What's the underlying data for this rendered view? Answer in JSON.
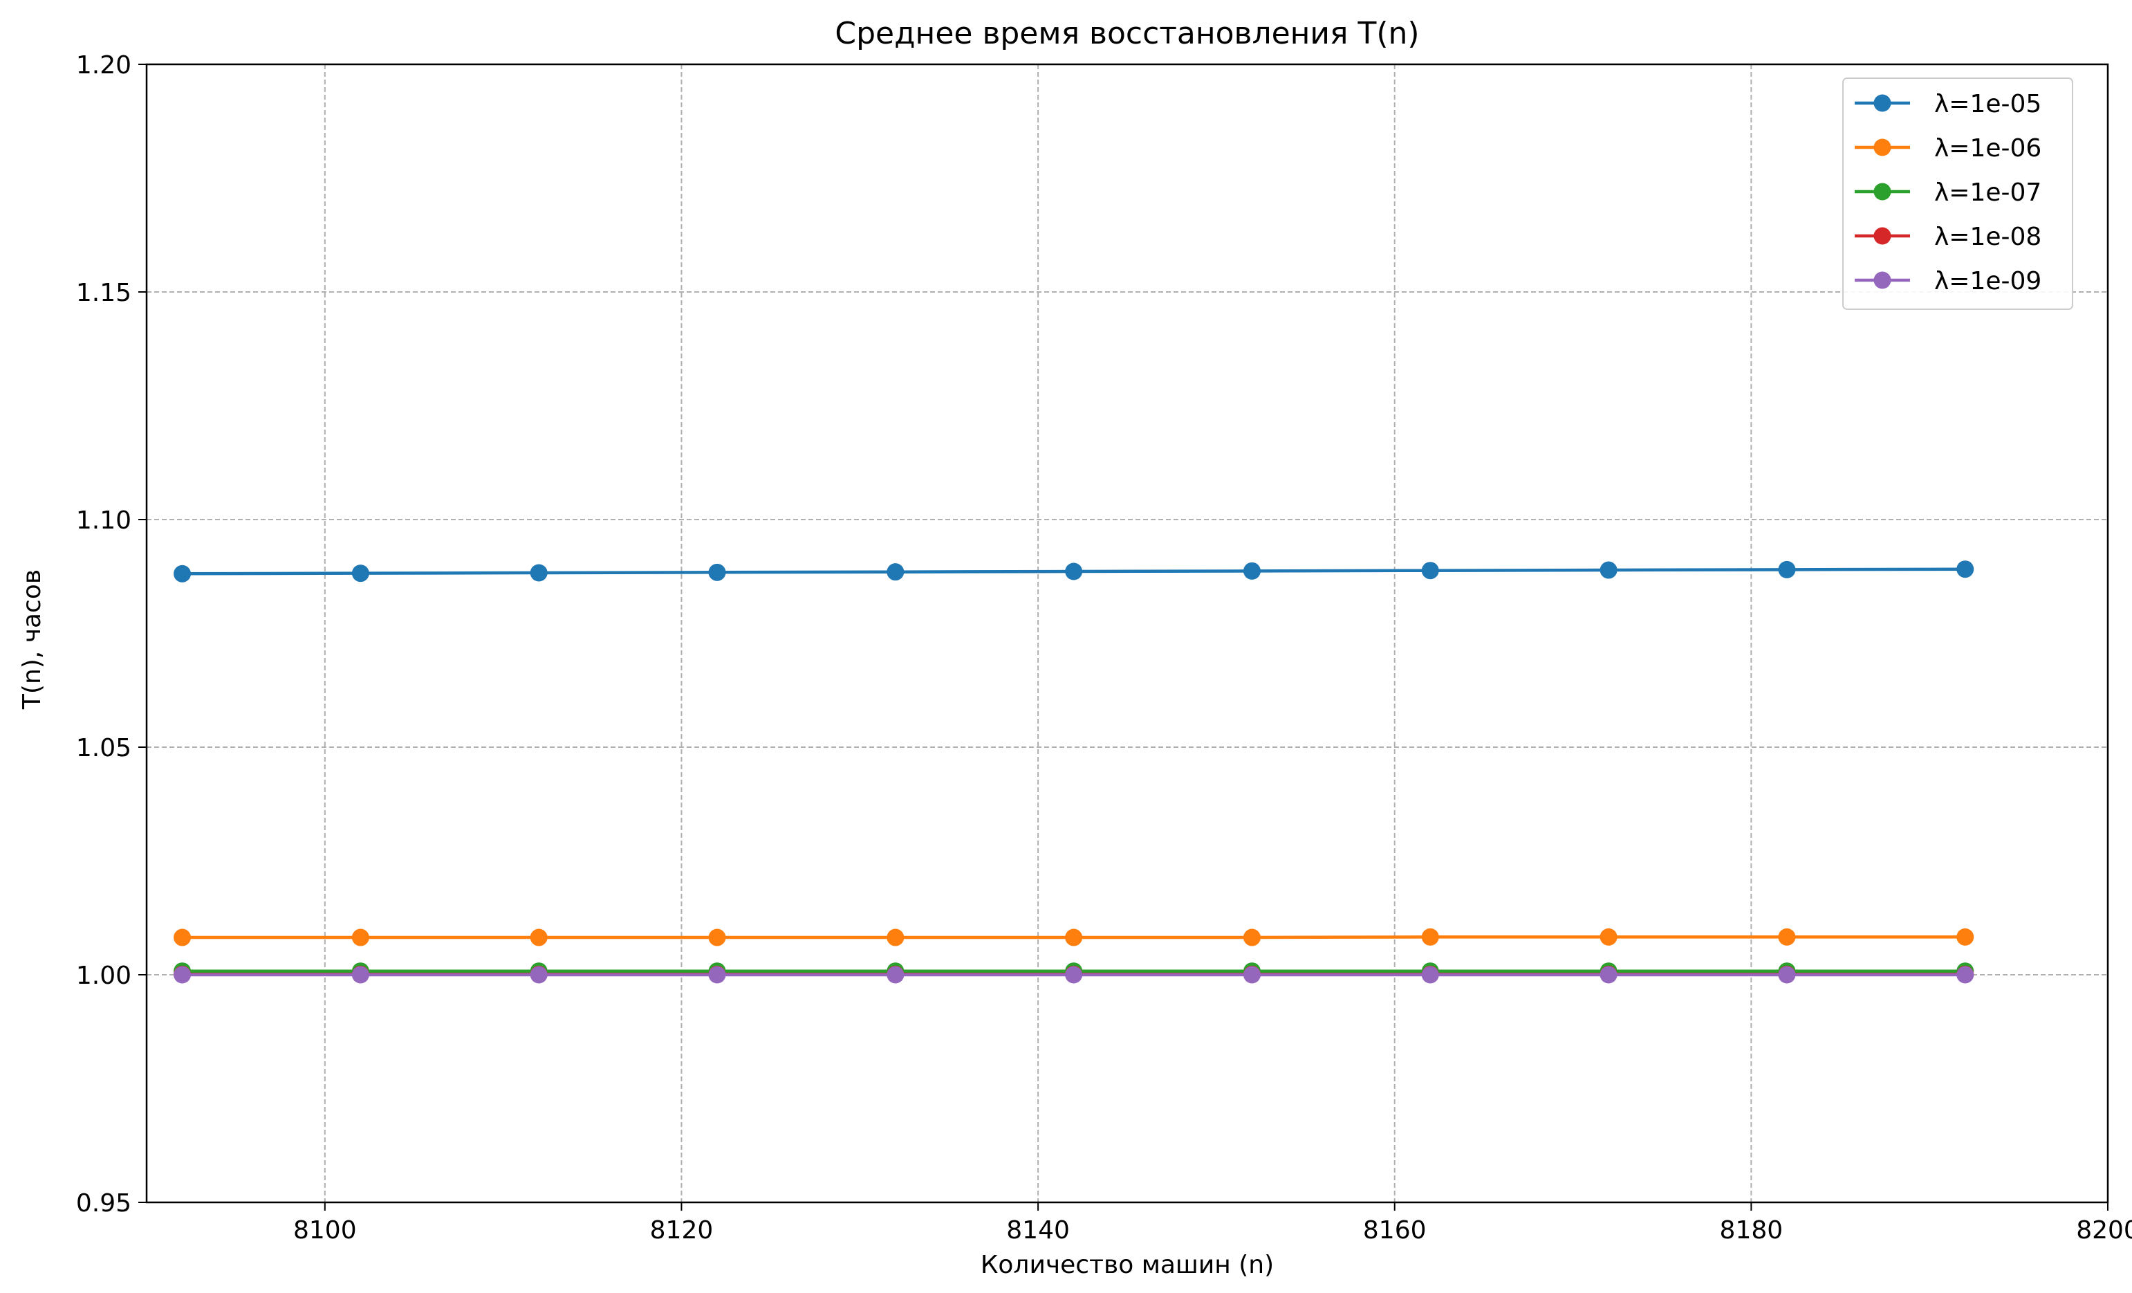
{
  "chart_data": {
    "type": "line",
    "title": "Среднее время восстановления T(n)",
    "xlabel": "Количество машин (n)",
    "ylabel": "T(n), часов",
    "xlim": [
      8090,
      8200
    ],
    "ylim": [
      0.95,
      1.2
    ],
    "x_ticks": [
      8100,
      8120,
      8140,
      8160,
      8180,
      8200
    ],
    "x_tick_labels": [
      "8100",
      "8120",
      "8140",
      "8160",
      "8180",
      "8200"
    ],
    "y_ticks": [
      0.95,
      1.0,
      1.05,
      1.1,
      1.15,
      1.2
    ],
    "y_tick_labels": [
      "0.95",
      "1.00",
      "1.05",
      "1.10",
      "1.15",
      "1.20"
    ],
    "grid": true,
    "legend_position": "top-right",
    "x": [
      8092,
      8102,
      8112,
      8122,
      8132,
      8142,
      8152,
      8162,
      8172,
      8182,
      8192
    ],
    "series": [
      {
        "name": "λ=1e-05",
        "color": "#1f77b4",
        "values": [
          1.0881,
          1.0882,
          1.0883,
          1.0884,
          1.0885,
          1.0886,
          1.0887,
          1.0888,
          1.0889,
          1.089,
          1.0891
        ]
      },
      {
        "name": "λ=1e-06",
        "color": "#ff7f0e",
        "values": [
          1.0082,
          1.0082,
          1.0082,
          1.0082,
          1.0082,
          1.0082,
          1.0082,
          1.0083,
          1.0083,
          1.0083,
          1.0083
        ]
      },
      {
        "name": "λ=1e-07",
        "color": "#2ca02c",
        "values": [
          1.0008,
          1.0008,
          1.0008,
          1.0008,
          1.0008,
          1.0008,
          1.0008,
          1.0008,
          1.0008,
          1.0008,
          1.0008
        ]
      },
      {
        "name": "λ=1e-08",
        "color": "#d62728",
        "values": [
          1.0001,
          1.0001,
          1.0001,
          1.0001,
          1.0001,
          1.0001,
          1.0001,
          1.0001,
          1.0001,
          1.0001,
          1.0001
        ]
      },
      {
        "name": "λ=1e-09",
        "color": "#9467bd",
        "values": [
          1.0,
          1.0,
          1.0,
          1.0,
          1.0,
          1.0,
          1.0,
          1.0,
          1.0,
          1.0,
          1.0
        ]
      }
    ]
  }
}
